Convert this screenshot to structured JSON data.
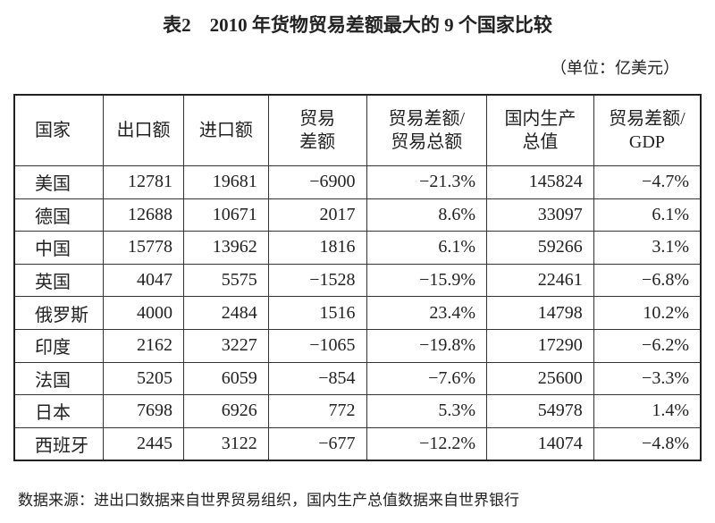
{
  "header": {
    "title": "表2　2010 年货物贸易差额最大的 9 个国家比较",
    "unit": "（单位：亿美元）"
  },
  "table": {
    "header": [
      [
        "国家"
      ],
      [
        "出口额"
      ],
      [
        "进口额"
      ],
      [
        "贸易",
        "差额"
      ],
      [
        "贸易差额/",
        "贸易总额"
      ],
      [
        "国内生产",
        "总值"
      ],
      [
        "贸易差额/",
        "GDP"
      ]
    ],
    "rows": [
      [
        "美国",
        "12781",
        "19681",
        "−6900",
        "−21.3%",
        "145824",
        "−4.7%"
      ],
      [
        "德国",
        "12688",
        "10671",
        "2017",
        "8.6%",
        "33097",
        "6.1%"
      ],
      [
        "中国",
        "15778",
        "13962",
        "1816",
        "6.1%",
        "59266",
        "3.1%"
      ],
      [
        "英国",
        "4047",
        "5575",
        "−1528",
        "−15.9%",
        "22461",
        "−6.8%"
      ],
      [
        "俄罗斯",
        "4000",
        "2484",
        "1516",
        "23.4%",
        "14798",
        "10.2%"
      ],
      [
        "印度",
        "2162",
        "3227",
        "−1065",
        "−19.8%",
        "17290",
        "−6.2%"
      ],
      [
        "法国",
        "5205",
        "6059",
        "−854",
        "−7.6%",
        "25600",
        "−3.3%"
      ],
      [
        "日本",
        "7698",
        "6926",
        "772",
        "5.3%",
        "54978",
        "1.4%"
      ],
      [
        "西班牙",
        "2445",
        "3122",
        "−677",
        "−12.2%",
        "14074",
        "−4.8%"
      ]
    ]
  },
  "footer": {
    "source": "数据来源：进出口数据来自世界贸易组织，国内生产总值数据来自世界银行"
  }
}
